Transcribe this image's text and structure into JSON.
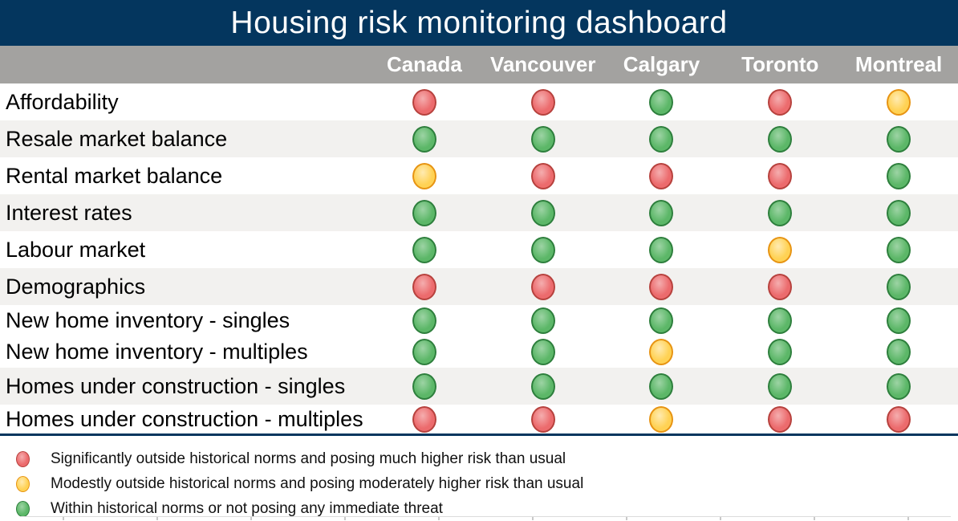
{
  "title": "Housing risk monitoring dashboard",
  "columns": [
    "Canada",
    "Vancouver",
    "Calgary",
    "Toronto",
    "Montreal"
  ],
  "chart_data": {
    "type": "heatmap",
    "title": "Housing risk monitoring dashboard",
    "x_categories": [
      "Canada",
      "Vancouver",
      "Calgary",
      "Toronto",
      "Montreal"
    ],
    "y_categories": [
      "Affordability",
      "Resale market balance",
      "Rental market balance",
      "Interest rates",
      "Labour market",
      "Demographics",
      "New home inventory - singles",
      "New home inventory - multiples",
      "Homes under construction - singles",
      "Homes under construction - multiples"
    ],
    "values_legend": {
      "red": "high risk",
      "yellow": "moderate risk",
      "green": "within norms"
    },
    "values": [
      [
        "red",
        "red",
        "green",
        "red",
        "yellow"
      ],
      [
        "green",
        "green",
        "green",
        "green",
        "green"
      ],
      [
        "yellow",
        "red",
        "red",
        "red",
        "green"
      ],
      [
        "green",
        "green",
        "green",
        "green",
        "green"
      ],
      [
        "green",
        "green",
        "green",
        "yellow",
        "green"
      ],
      [
        "red",
        "red",
        "red",
        "red",
        "green"
      ],
      [
        "green",
        "green",
        "green",
        "green",
        "green"
      ],
      [
        "green",
        "green",
        "yellow",
        "green",
        "green"
      ],
      [
        "green",
        "green",
        "green",
        "green",
        "green"
      ],
      [
        "red",
        "red",
        "yellow",
        "red",
        "red"
      ]
    ]
  },
  "rows": [
    {
      "label": "Affordability",
      "statuses": [
        "red",
        "red",
        "green",
        "red",
        "yellow"
      ]
    },
    {
      "label": "Resale market balance",
      "statuses": [
        "green",
        "green",
        "green",
        "green",
        "green"
      ]
    },
    {
      "label": "Rental market balance",
      "statuses": [
        "yellow",
        "red",
        "red",
        "red",
        "green"
      ]
    },
    {
      "label": "Interest rates",
      "statuses": [
        "green",
        "green",
        "green",
        "green",
        "green"
      ]
    },
    {
      "label": "Labour market",
      "statuses": [
        "green",
        "green",
        "green",
        "yellow",
        "green"
      ]
    },
    {
      "label": "Demographics",
      "statuses": [
        "red",
        "red",
        "red",
        "red",
        "green"
      ]
    },
    {
      "label": "New home inventory - singles",
      "statuses": [
        "green",
        "green",
        "green",
        "green",
        "green"
      ]
    },
    {
      "label": "New home inventory - multiples",
      "statuses": [
        "green",
        "green",
        "yellow",
        "green",
        "green"
      ]
    },
    {
      "label": "Homes under construction - singles",
      "statuses": [
        "green",
        "green",
        "green",
        "green",
        "green"
      ]
    },
    {
      "label": "Homes under construction - multiples",
      "statuses": [
        "red",
        "red",
        "yellow",
        "red",
        "red"
      ]
    }
  ],
  "legend": [
    {
      "status": "red",
      "label": "Significantly outside historical norms and posing much higher risk than usual"
    },
    {
      "status": "yellow",
      "label": "Modestly outside historical norms and posing moderately higher risk than usual"
    },
    {
      "status": "green",
      "label": "Within historical norms or not posing any immediate threat"
    }
  ],
  "colors": {
    "title_bg": "#04365e",
    "header_bg": "#a3a2a0",
    "row_alt_bg": "#f2f1ef",
    "red_fill": "#ec6b6d",
    "red_border": "#b7423e",
    "yellow_fill": "#ffd254",
    "yellow_border": "#e79413",
    "green_fill": "#5cb768",
    "green_border": "#2e7f3d"
  }
}
